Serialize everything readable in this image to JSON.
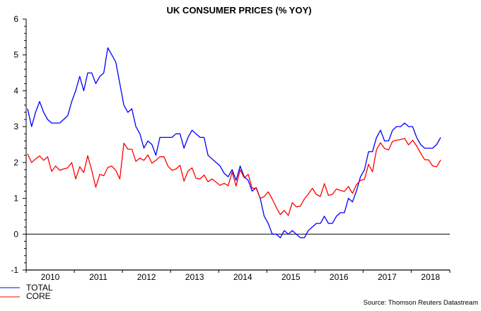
{
  "chart_data": {
    "type": "line",
    "title": "UK CONSUMER PRICES (% YOY)",
    "xlabel": "",
    "ylabel": "",
    "x_start": "2010-01",
    "x_end": "2018-08",
    "frequency": "monthly",
    "x_tick_labels": [
      "2010",
      "2011",
      "2012",
      "2013",
      "2014",
      "2015",
      "2016",
      "2017",
      "2018"
    ],
    "y_tick_labels": [
      "-1",
      "0",
      "1",
      "2",
      "3",
      "4",
      "5",
      "6"
    ],
    "ylim": [
      -1,
      6
    ],
    "grid": false,
    "zero_line": true,
    "legend_position": "bottom-left",
    "series": [
      {
        "name": "TOTAL",
        "color": "#0000ff",
        "values": [
          3.5,
          3.0,
          3.4,
          3.7,
          3.4,
          3.2,
          3.1,
          3.1,
          3.1,
          3.2,
          3.3,
          3.7,
          4.0,
          4.4,
          4.0,
          4.5,
          4.5,
          4.2,
          4.4,
          4.5,
          5.2,
          5.0,
          4.8,
          4.2,
          3.6,
          3.4,
          3.5,
          3.0,
          2.8,
          2.4,
          2.6,
          2.5,
          2.2,
          2.7,
          2.7,
          2.7,
          2.7,
          2.8,
          2.8,
          2.4,
          2.7,
          2.9,
          2.8,
          2.7,
          2.7,
          2.2,
          2.1,
          2.0,
          1.9,
          1.7,
          1.6,
          1.8,
          1.5,
          1.9,
          1.6,
          1.5,
          1.2,
          1.3,
          1.0,
          0.5,
          0.3,
          0.0,
          0.0,
          -0.1,
          0.1,
          0.0,
          0.1,
          0.0,
          -0.1,
          -0.1,
          0.1,
          0.2,
          0.3,
          0.3,
          0.5,
          0.3,
          0.3,
          0.5,
          0.6,
          0.6,
          1.0,
          0.9,
          1.2,
          1.6,
          1.8,
          2.3,
          2.3,
          2.7,
          2.9,
          2.6,
          2.6,
          2.9,
          3.0,
          3.0,
          3.1,
          3.0,
          3.0,
          2.7,
          2.5,
          2.4,
          2.4,
          2.4,
          2.5,
          2.7
        ]
      },
      {
        "name": "CORE",
        "color": "#ff0000",
        "values": [
          2.24,
          2.0,
          2.1,
          2.18,
          2.06,
          2.16,
          1.75,
          1.9,
          1.78,
          1.82,
          1.85,
          2.0,
          1.54,
          1.88,
          1.72,
          2.19,
          1.78,
          1.31,
          1.67,
          1.63,
          1.86,
          1.9,
          1.78,
          1.54,
          2.54,
          2.37,
          2.37,
          2.03,
          2.12,
          2.06,
          2.21,
          1.98,
          2.06,
          2.16,
          2.16,
          1.9,
          1.78,
          1.82,
          1.92,
          1.48,
          1.76,
          1.85,
          1.56,
          1.54,
          1.65,
          1.46,
          1.54,
          1.45,
          1.36,
          1.42,
          1.35,
          1.73,
          1.34,
          1.8,
          1.57,
          1.67,
          1.28,
          1.28,
          1.0,
          1.05,
          1.18,
          0.98,
          0.75,
          0.55,
          0.66,
          0.52,
          0.88,
          0.76,
          0.78,
          0.98,
          1.12,
          1.28,
          1.11,
          1.05,
          1.41,
          1.08,
          1.11,
          1.26,
          1.22,
          1.19,
          1.33,
          1.14,
          1.38,
          1.5,
          1.53,
          1.95,
          1.74,
          2.36,
          2.55,
          2.39,
          2.35,
          2.59,
          2.62,
          2.64,
          2.67,
          2.49,
          2.62,
          2.46,
          2.26,
          2.08,
          2.07,
          1.9,
          1.88,
          2.07
        ]
      }
    ],
    "source": "Source: Thomson Reuters Datastream"
  }
}
